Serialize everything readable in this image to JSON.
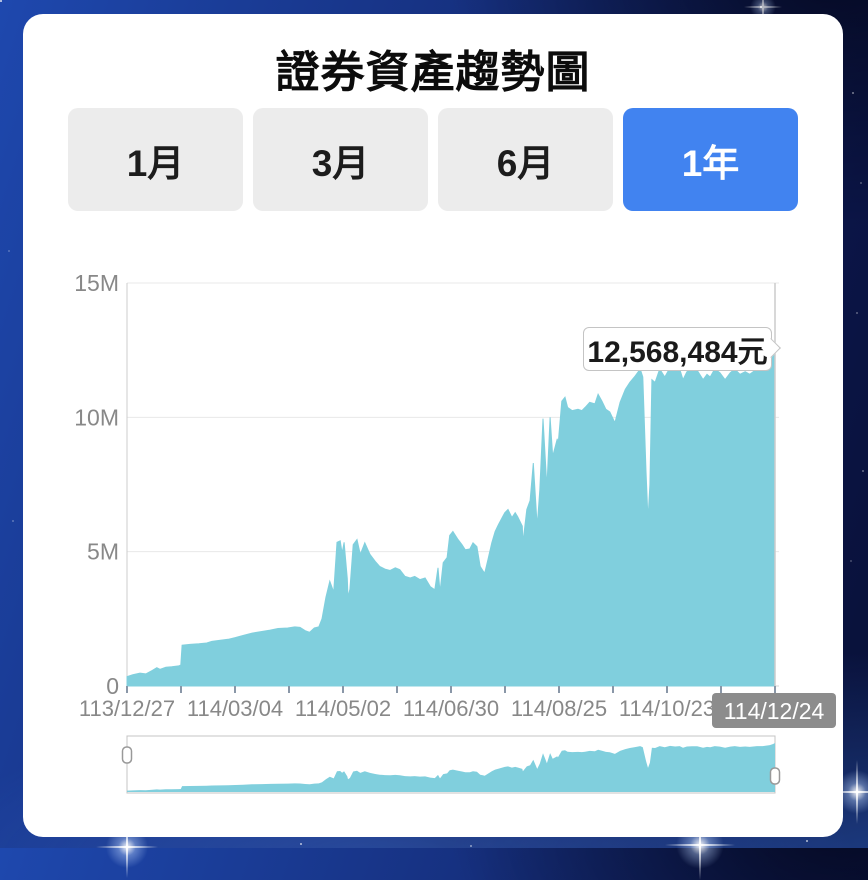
{
  "header": {
    "title": "證券資產趨勢圖"
  },
  "range_tabs": [
    {
      "label": "1月",
      "active": false
    },
    {
      "label": "3月",
      "active": false
    },
    {
      "label": "6月",
      "active": false
    },
    {
      "label": "1年",
      "active": true
    }
  ],
  "tooltip": {
    "value_label": "12,568,484元"
  },
  "colors": {
    "area_fill": "#80CFDD",
    "active_tab": "#4183F0",
    "inactive_tab": "#ECECEC",
    "grid_line": "#E8E8E8",
    "axis_line": "#CCCCCC",
    "axis_text": "#888888",
    "tick_mark": "#8A97A8",
    "highlight_box_bg": "#8C8C8C",
    "highlight_box_text": "#FFFFFF"
  },
  "chart_data": {
    "type": "area",
    "title": "證券資產趨勢圖",
    "unit": "元",
    "legend": "none",
    "grid": "horizontal",
    "y_axis": {
      "tick_values_M": [
        0,
        5,
        10,
        15
      ],
      "tick_labels": [
        "0",
        "5M",
        "10M",
        "15M"
      ],
      "ylim_M": [
        0,
        15
      ]
    },
    "x_axis": {
      "labels": [
        "113/12/27",
        "114/03/04",
        "114/05/02",
        "114/06/30",
        "114/08/25",
        "114/10/23"
      ],
      "highlight_label": "114/12/24",
      "minor_tick_count": 13
    },
    "latest_point": {
      "date": "114/12/24",
      "value": 12568484
    },
    "series": [
      {
        "name": "證券資產",
        "points_t_valueM": [
          [
            0,
            0.35
          ],
          [
            0.009,
            0.42
          ],
          [
            0.02,
            0.48
          ],
          [
            0.029,
            0.45
          ],
          [
            0.039,
            0.58
          ],
          [
            0.046,
            0.68
          ],
          [
            0.051,
            0.62
          ],
          [
            0.06,
            0.7
          ],
          [
            0.069,
            0.72
          ],
          [
            0.08,
            0.75
          ],
          [
            0.083,
            0.78
          ],
          [
            0.085,
            1.52
          ],
          [
            0.097,
            1.55
          ],
          [
            0.111,
            1.57
          ],
          [
            0.123,
            1.6
          ],
          [
            0.131,
            1.66
          ],
          [
            0.144,
            1.7
          ],
          [
            0.156,
            1.74
          ],
          [
            0.167,
            1.8
          ],
          [
            0.179,
            1.88
          ],
          [
            0.193,
            1.97
          ],
          [
            0.208,
            2.03
          ],
          [
            0.221,
            2.08
          ],
          [
            0.233,
            2.14
          ],
          [
            0.248,
            2.16
          ],
          [
            0.259,
            2.2
          ],
          [
            0.267,
            2.18
          ],
          [
            0.275,
            2.06
          ],
          [
            0.282,
            2.0
          ],
          [
            0.289,
            2.16
          ],
          [
            0.296,
            2.2
          ],
          [
            0.301,
            2.5
          ],
          [
            0.307,
            3.3
          ],
          [
            0.313,
            3.9
          ],
          [
            0.319,
            3.5
          ],
          [
            0.324,
            5.35
          ],
          [
            0.329,
            5.4
          ],
          [
            0.332,
            4.95
          ],
          [
            0.335,
            5.35
          ],
          [
            0.34,
            4.0
          ],
          [
            0.341,
            3.3
          ],
          [
            0.344,
            3.6
          ],
          [
            0.349,
            5.26
          ],
          [
            0.355,
            5.45
          ],
          [
            0.36,
            4.9
          ],
          [
            0.367,
            5.33
          ],
          [
            0.375,
            4.9
          ],
          [
            0.383,
            4.64
          ],
          [
            0.39,
            4.45
          ],
          [
            0.398,
            4.35
          ],
          [
            0.406,
            4.3
          ],
          [
            0.414,
            4.4
          ],
          [
            0.421,
            4.33
          ],
          [
            0.429,
            4.08
          ],
          [
            0.437,
            4.02
          ],
          [
            0.444,
            4.08
          ],
          [
            0.452,
            3.96
          ],
          [
            0.46,
            4.02
          ],
          [
            0.468,
            3.7
          ],
          [
            0.475,
            3.58
          ],
          [
            0.48,
            4.4
          ],
          [
            0.483,
            3.5
          ],
          [
            0.488,
            4.59
          ],
          [
            0.494,
            4.78
          ],
          [
            0.498,
            5.6
          ],
          [
            0.503,
            5.75
          ],
          [
            0.511,
            5.45
          ],
          [
            0.517,
            5.26
          ],
          [
            0.522,
            5.07
          ],
          [
            0.529,
            5.1
          ],
          [
            0.534,
            5.33
          ],
          [
            0.54,
            5.19
          ],
          [
            0.545,
            4.45
          ],
          [
            0.549,
            4.3
          ],
          [
            0.552,
            4.2
          ],
          [
            0.557,
            4.7
          ],
          [
            0.563,
            5.33
          ],
          [
            0.568,
            5.75
          ],
          [
            0.573,
            6.0
          ],
          [
            0.579,
            6.27
          ],
          [
            0.583,
            6.45
          ],
          [
            0.588,
            6.57
          ],
          [
            0.594,
            6.27
          ],
          [
            0.599,
            6.45
          ],
          [
            0.603,
            6.3
          ],
          [
            0.61,
            5.95
          ],
          [
            0.611,
            5.33
          ],
          [
            0.617,
            6.57
          ],
          [
            0.622,
            6.9
          ],
          [
            0.627,
            8.3
          ],
          [
            0.633,
            5.95
          ],
          [
            0.637,
            7.3
          ],
          [
            0.642,
            9.95
          ],
          [
            0.648,
            7.4
          ],
          [
            0.653,
            10.0
          ],
          [
            0.657,
            8.55
          ],
          [
            0.664,
            9.2
          ],
          [
            0.665,
            8.9
          ],
          [
            0.671,
            10.6
          ],
          [
            0.676,
            10.75
          ],
          [
            0.68,
            10.37
          ],
          [
            0.687,
            10.25
          ],
          [
            0.696,
            10.3
          ],
          [
            0.702,
            10.25
          ],
          [
            0.707,
            10.37
          ],
          [
            0.714,
            10.56
          ],
          [
            0.722,
            10.5
          ],
          [
            0.727,
            10.86
          ],
          [
            0.733,
            10.6
          ],
          [
            0.739,
            10.3
          ],
          [
            0.745,
            10.2
          ],
          [
            0.753,
            9.8
          ],
          [
            0.761,
            10.56
          ],
          [
            0.769,
            11.04
          ],
          [
            0.776,
            11.3
          ],
          [
            0.784,
            11.53
          ],
          [
            0.792,
            11.8
          ],
          [
            0.796,
            11.5
          ],
          [
            0.801,
            8.0
          ],
          [
            0.804,
            6.2
          ],
          [
            0.807,
            7.5
          ],
          [
            0.81,
            11.4
          ],
          [
            0.815,
            11.3
          ],
          [
            0.822,
            11.8
          ],
          [
            0.83,
            11.5
          ],
          [
            0.838,
            11.85
          ],
          [
            0.846,
            11.7
          ],
          [
            0.853,
            11.8
          ],
          [
            0.858,
            11.4
          ],
          [
            0.864,
            11.7
          ],
          [
            0.872,
            11.78
          ],
          [
            0.88,
            11.75
          ],
          [
            0.889,
            11.4
          ],
          [
            0.895,
            11.6
          ],
          [
            0.9,
            11.5
          ],
          [
            0.907,
            11.8
          ],
          [
            0.915,
            11.66
          ],
          [
            0.923,
            11.4
          ],
          [
            0.931,
            11.66
          ],
          [
            0.938,
            11.8
          ],
          [
            0.946,
            11.6
          ],
          [
            0.954,
            11.7
          ],
          [
            0.961,
            11.6
          ],
          [
            0.972,
            11.8
          ],
          [
            0.981,
            11.8
          ],
          [
            0.992,
            12.05
          ],
          [
            0.997,
            12.35
          ],
          [
            1,
            12.6
          ]
        ]
      }
    ]
  },
  "navigator": {
    "has_left_handle": true,
    "has_right_handle": true
  }
}
